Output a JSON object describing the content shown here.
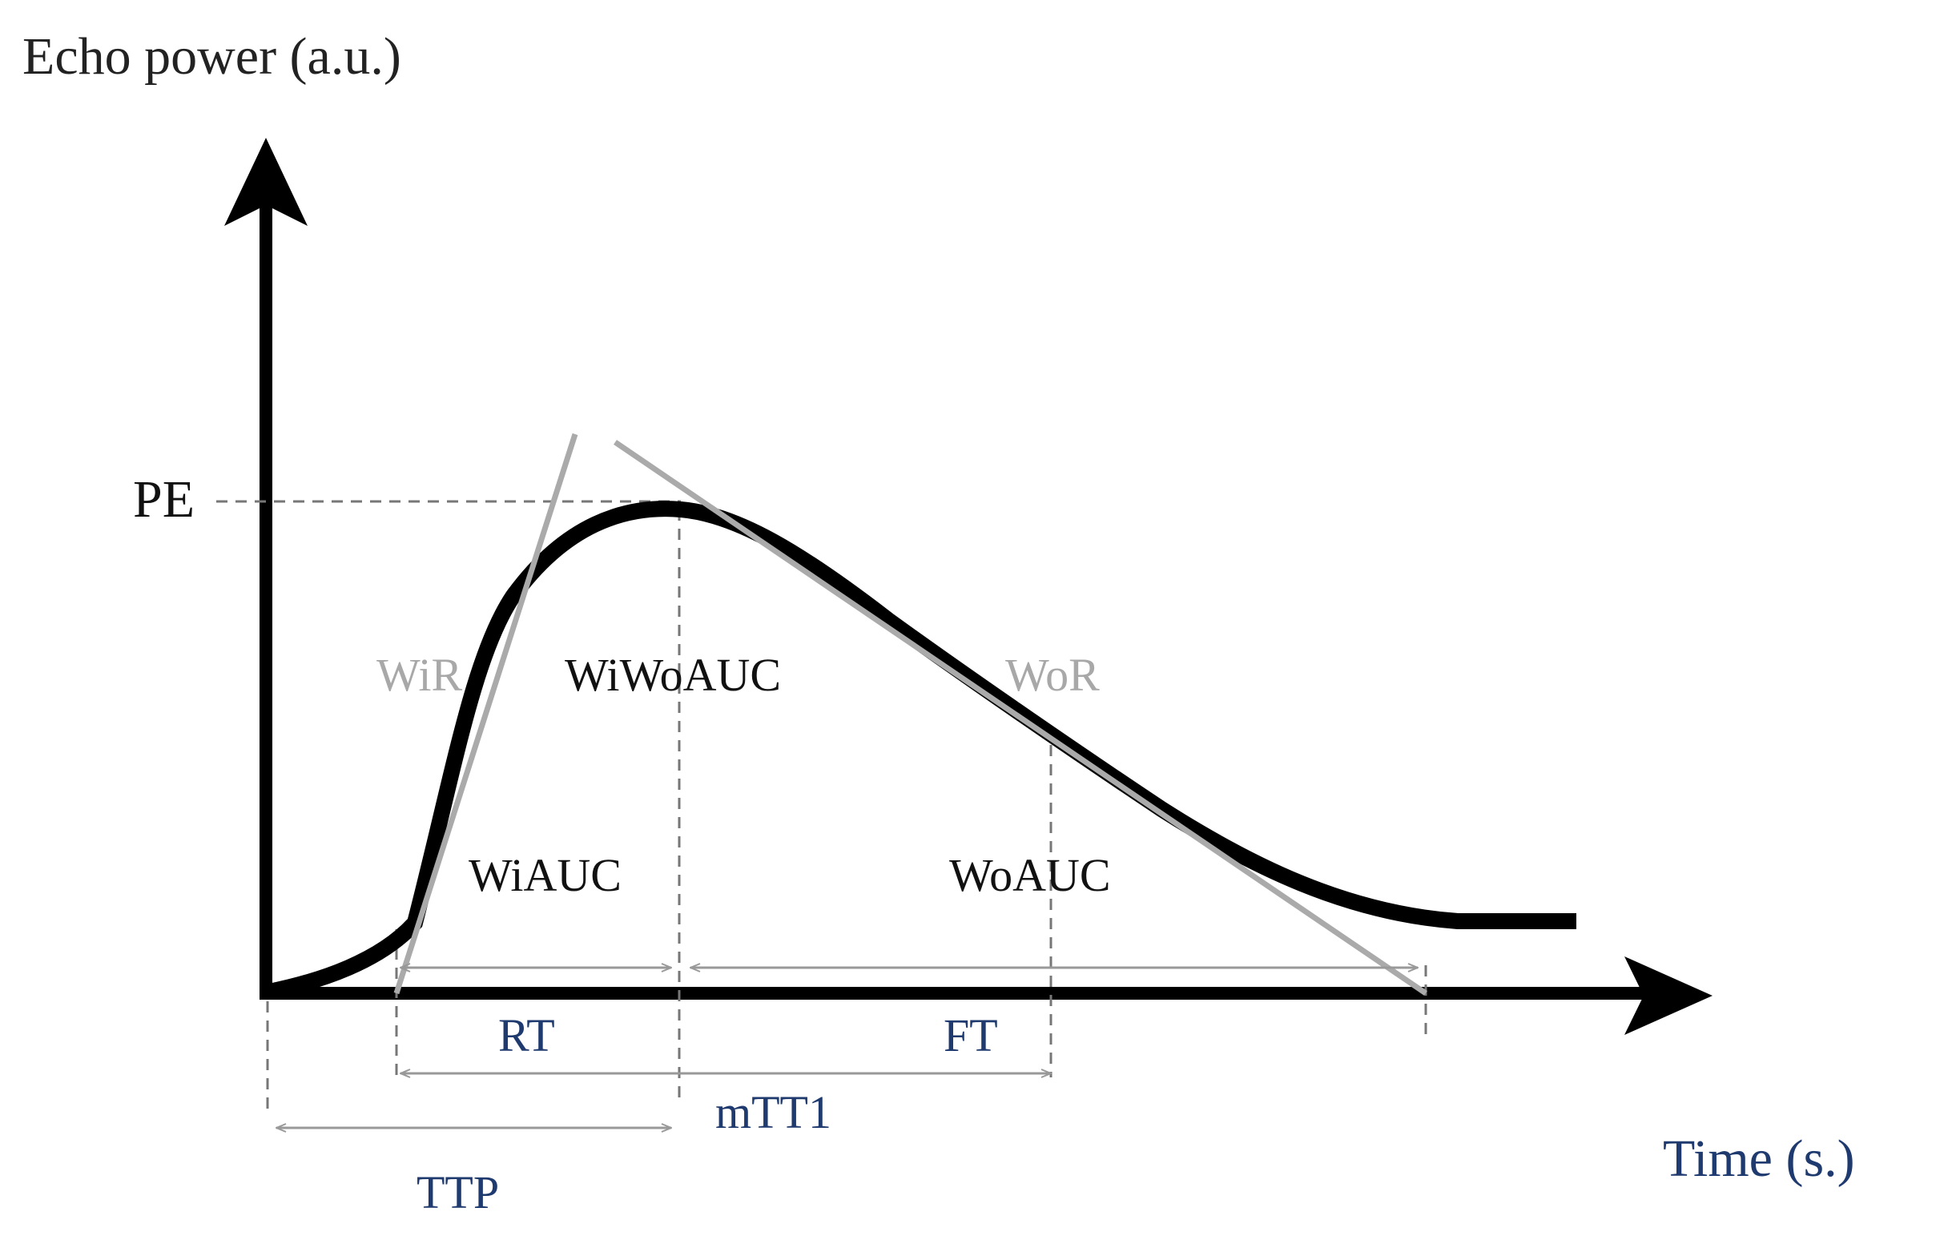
{
  "axes": {
    "y_label": "Echo power (a.u.)",
    "x_label": "Time (s.)",
    "peak_label": "PE"
  },
  "regions": {
    "wir": "WiR",
    "wor": "WoR",
    "wiwoauc": "WiWoAUC",
    "wiauc": "WiAUC",
    "woauc": "WoAUC"
  },
  "intervals": {
    "rt": "RT",
    "ft": "FT",
    "mtt": "mTT1",
    "ttp": "TTP"
  },
  "colors": {
    "curve": "#000000",
    "axis": "#000000",
    "tangent": "#aaaaaa",
    "guide": "#777777",
    "arrow": "#999999",
    "interval_label": "#1f3a6e",
    "time_label": "#1f3a6e",
    "tangent_label": "#a8a8a8"
  }
}
